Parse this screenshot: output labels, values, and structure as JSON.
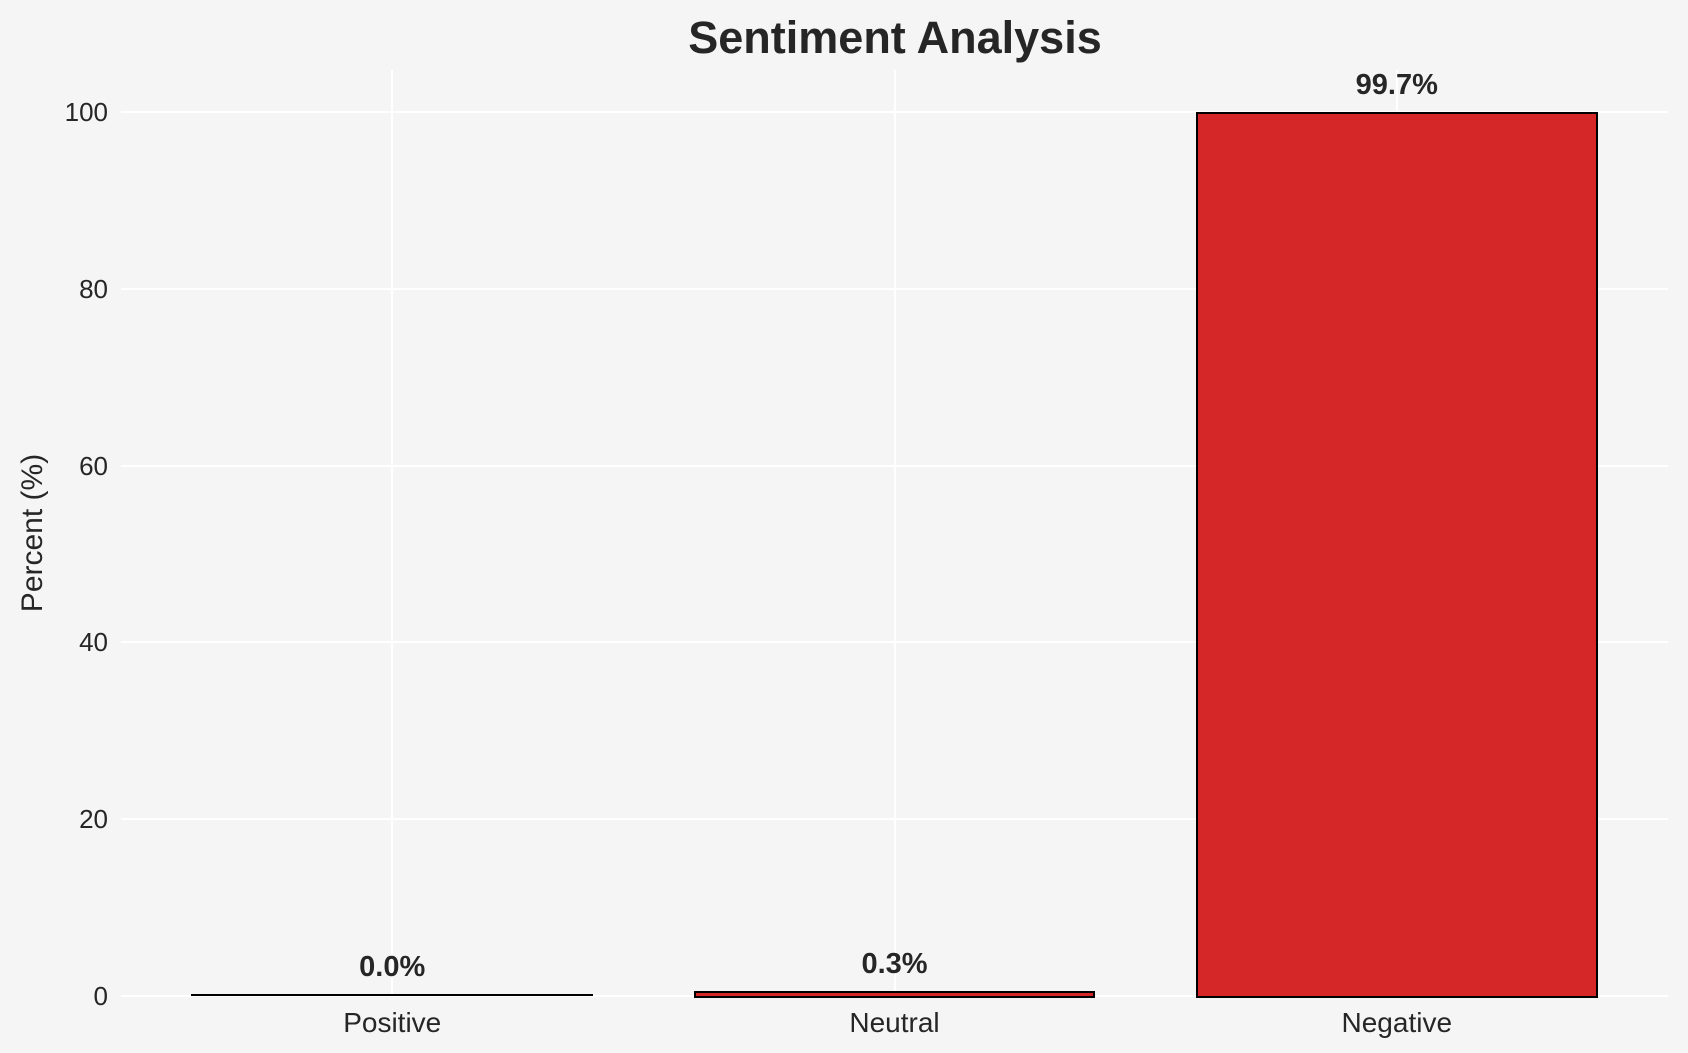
{
  "title": "Sentiment Analysis",
  "colors": {
    "background": "#f5f5f5",
    "grid": "#ffffff",
    "bar_fill": "#d62728",
    "bar_edge": "#000000",
    "text": "#262626"
  },
  "chart_data": {
    "type": "bar",
    "title": "Sentiment Analysis",
    "xlabel": "",
    "ylabel": "Percent (%)",
    "categories": [
      "Positive",
      "Neutral",
      "Negative"
    ],
    "values": [
      0.0,
      0.3,
      99.7
    ],
    "bar_labels": [
      "0.0%",
      "0.3%",
      "99.7%"
    ],
    "yticks": [
      0,
      20,
      40,
      60,
      80,
      100
    ],
    "ylim": [
      0,
      104.7
    ],
    "grid": "on",
    "legend": "none",
    "bar_color": "#d62728",
    "bar_edge_color": "#000000"
  }
}
